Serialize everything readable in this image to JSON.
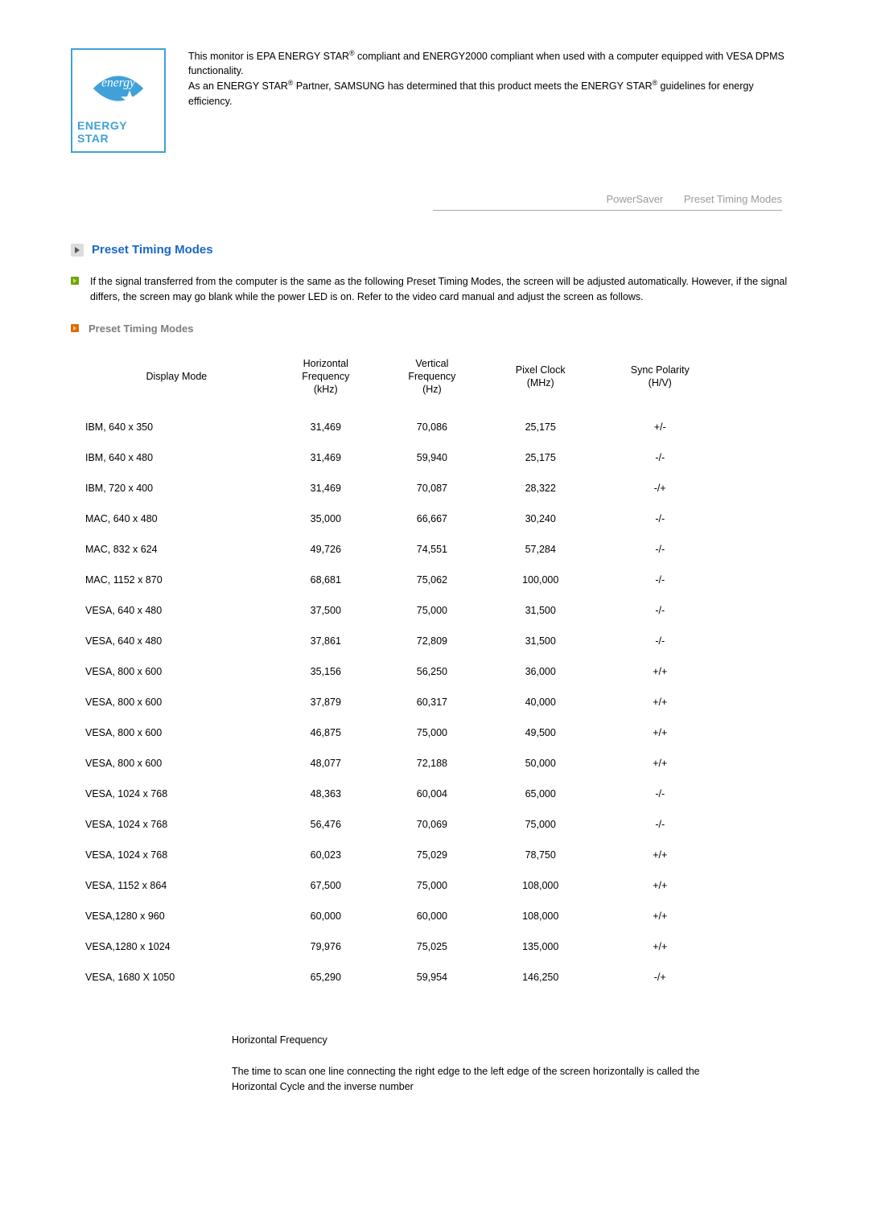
{
  "energy_star": {
    "logo_text": "ENERGY STAR",
    "logo_border_color": "#3fa1d8",
    "logo_text_color": "#3fa1d8",
    "star_fill": "#3fa1d8",
    "paragraph1_a": "This monitor is EPA ENERGY STAR",
    "paragraph1_b": " compliant and ENERGY2000 compliant when used with a computer equipped with VESA DPMS functionality.",
    "paragraph2_a": "As an ENERGY STAR",
    "paragraph2_b": " Partner, SAMSUNG has determined that this product meets the ENERGY STAR",
    "paragraph2_c": " guidelines for energy efficiency.",
    "reg": "®"
  },
  "tabs": {
    "tab1": "PowerSaver",
    "tab2": "Preset Timing Modes"
  },
  "section": {
    "title": "Preset Timing Modes",
    "intro": "If the signal transferred from the computer is the same as the following Preset Timing Modes, the screen will be adjusted automatically. However, if the signal differs, the screen may go blank while the power LED is on. Refer to the video card manual and adjust the screen as follows.",
    "sub": "Preset Timing Modes"
  },
  "table": {
    "headers": {
      "c1": "Display Mode",
      "c2": "Horizontal Frequency (kHz)",
      "c3": "Vertical Frequency (Hz)",
      "c4": "Pixel Clock (MHz)",
      "c5": "Sync Polarity (H/V)"
    },
    "rows": [
      {
        "mode": "IBM, 640 x 350",
        "hf": "31,469",
        "vf": "70,086",
        "pc": "25,175",
        "sp": "+/-"
      },
      {
        "mode": "IBM, 640 x 480",
        "hf": "31,469",
        "vf": "59,940",
        "pc": "25,175",
        "sp": "-/-"
      },
      {
        "mode": "IBM, 720 x 400",
        "hf": "31,469",
        "vf": "70,087",
        "pc": "28,322",
        "sp": "-/+"
      },
      {
        "mode": "MAC, 640 x 480",
        "hf": "35,000",
        "vf": "66,667",
        "pc": "30,240",
        "sp": "-/-"
      },
      {
        "mode": "MAC, 832 x 624",
        "hf": "49,726",
        "vf": "74,551",
        "pc": "57,284",
        "sp": "-/-"
      },
      {
        "mode": "MAC, 1152 x 870",
        "hf": "68,681",
        "vf": "75,062",
        "pc": "100,000",
        "sp": "-/-"
      },
      {
        "mode": "VESA, 640 x 480",
        "hf": "37,500",
        "vf": "75,000",
        "pc": "31,500",
        "sp": "-/-"
      },
      {
        "mode": "VESA, 640 x 480",
        "hf": "37,861",
        "vf": "72,809",
        "pc": "31,500",
        "sp": "-/-"
      },
      {
        "mode": "VESA, 800 x 600",
        "hf": "35,156",
        "vf": "56,250",
        "pc": "36,000",
        "sp": "+/+"
      },
      {
        "mode": "VESA, 800 x 600",
        "hf": "37,879",
        "vf": "60,317",
        "pc": "40,000",
        "sp": "+/+"
      },
      {
        "mode": "VESA, 800 x 600",
        "hf": "46,875",
        "vf": "75,000",
        "pc": "49,500",
        "sp": "+/+"
      },
      {
        "mode": "VESA, 800 x 600",
        "hf": "48,077",
        "vf": "72,188",
        "pc": "50,000",
        "sp": "+/+"
      },
      {
        "mode": "VESA, 1024 x 768",
        "hf": "48,363",
        "vf": "60,004",
        "pc": "65,000",
        "sp": "-/-"
      },
      {
        "mode": "VESA, 1024 x 768",
        "hf": "56,476",
        "vf": "70,069",
        "pc": "75,000",
        "sp": "-/-"
      },
      {
        "mode": "VESA, 1024 x 768",
        "hf": "60,023",
        "vf": "75,029",
        "pc": "78,750",
        "sp": "+/+"
      },
      {
        "mode": "VESA, 1152 x 864",
        "hf": "67,500",
        "vf": "75,000",
        "pc": "108,000",
        "sp": "+/+"
      },
      {
        "mode": "VESA,1280 x 960",
        "hf": "60,000",
        "vf": "60,000",
        "pc": "108,000",
        "sp": "+/+"
      },
      {
        "mode": "VESA,1280 x 1024",
        "hf": "79,976",
        "vf": "75,025",
        "pc": "135,000",
        "sp": "+/+"
      },
      {
        "mode": "VESA, 1680 X 1050",
        "hf": "65,290",
        "vf": "59,954",
        "pc": "146,250",
        "sp": "-/+"
      }
    ]
  },
  "footer": {
    "heading": "Horizontal Frequency",
    "body": "The time to scan one line connecting the right edge to the left edge of the screen horizontally is called the Horizontal Cycle and the inverse number"
  },
  "colors": {
    "section_title": "#1a66c9",
    "tab_gray": "#9b9b9b",
    "sub_gray": "#7d7d7d",
    "green_bullet": "#6da800",
    "orange_bullet": "#e06a00"
  }
}
